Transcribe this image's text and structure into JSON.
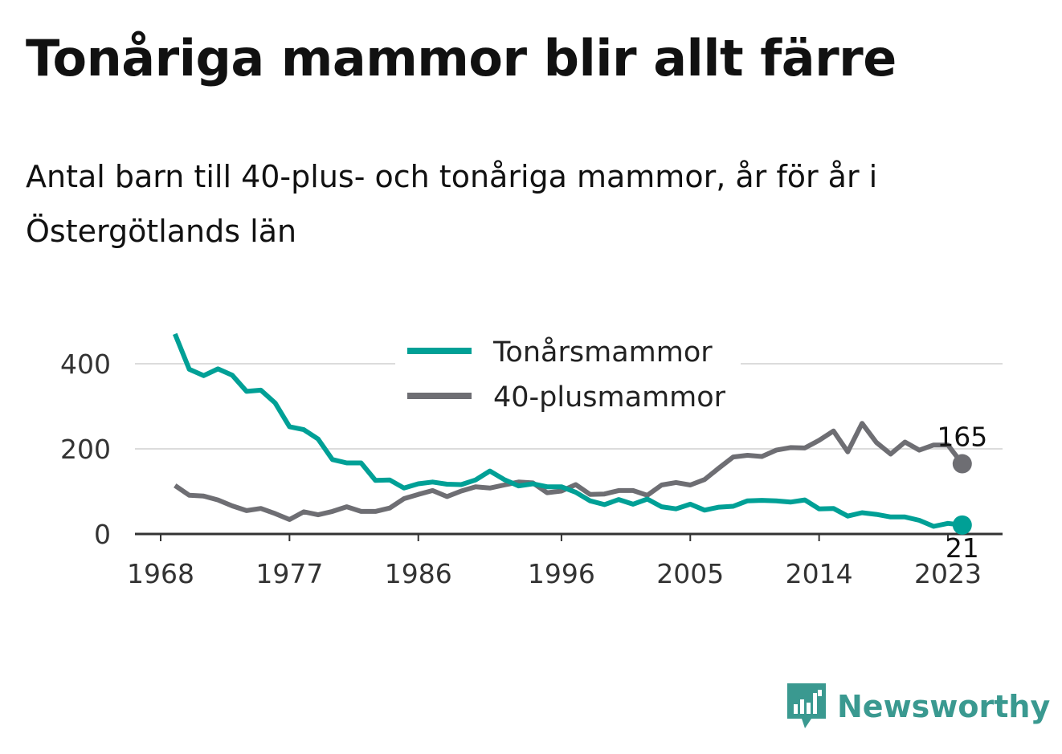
{
  "title": "Tonåriga mammor blir allt färre",
  "subtitle": "Antal barn till 40-plus- och tonåriga mammor, år för år i Östergötlands län",
  "brand": {
    "name": "Newsworthy",
    "color": "#3a9990",
    "icon": "newsworthy-logo-icon"
  },
  "chart_data": {
    "type": "line",
    "title": "Tonåriga mammor blir allt färre",
    "xlabel": "",
    "ylabel": "",
    "xlim": [
      1967,
      2026
    ],
    "ylim": [
      0,
      480
    ],
    "grid": true,
    "legend_position": "top-center",
    "x_ticks": [
      1968,
      1977,
      1986,
      1996,
      2005,
      2014,
      2023
    ],
    "y_ticks": [
      0,
      200,
      400
    ],
    "x": [
      1969,
      1970,
      1971,
      1972,
      1973,
      1974,
      1975,
      1976,
      1977,
      1978,
      1979,
      1980,
      1981,
      1982,
      1983,
      1984,
      1985,
      1986,
      1987,
      1988,
      1989,
      1990,
      1991,
      1992,
      1993,
      1994,
      1995,
      1996,
      1997,
      1998,
      1999,
      2000,
      2001,
      2002,
      2003,
      2004,
      2005,
      2006,
      2007,
      2008,
      2009,
      2010,
      2011,
      2012,
      2013,
      2014,
      2015,
      2016,
      2017,
      2018,
      2019,
      2020,
      2021,
      2022,
      2023,
      2024
    ],
    "series": [
      {
        "name": "Tonårsmammor",
        "color": "#00a096",
        "values": [
          470,
          387,
          372,
          388,
          373,
          335,
          338,
          308,
          252,
          245,
          223,
          175,
          167,
          167,
          126,
          127,
          108,
          118,
          122,
          117,
          116,
          127,
          148,
          128,
          113,
          118,
          111,
          111,
          98,
          78,
          69,
          81,
          70,
          82,
          64,
          59,
          70,
          56,
          63,
          65,
          78,
          79,
          78,
          75,
          80,
          59,
          60,
          42,
          50,
          46,
          40,
          40,
          32,
          18,
          25,
          21
        ],
        "end_label": "21"
      },
      {
        "name": "40-plusmammor",
        "color": "#6e6e73",
        "values": [
          114,
          91,
          89,
          80,
          66,
          55,
          60,
          48,
          34,
          52,
          45,
          53,
          64,
          53,
          53,
          61,
          83,
          93,
          102,
          88,
          101,
          111,
          108,
          115,
          122,
          120,
          97,
          101,
          116,
          93,
          94,
          102,
          102,
          91,
          115,
          121,
          115,
          128,
          155,
          181,
          185,
          182,
          197,
          203,
          202,
          220,
          242,
          193,
          260,
          215,
          188,
          216,
          197,
          209,
          209,
          165
        ],
        "end_label": "165"
      }
    ]
  }
}
